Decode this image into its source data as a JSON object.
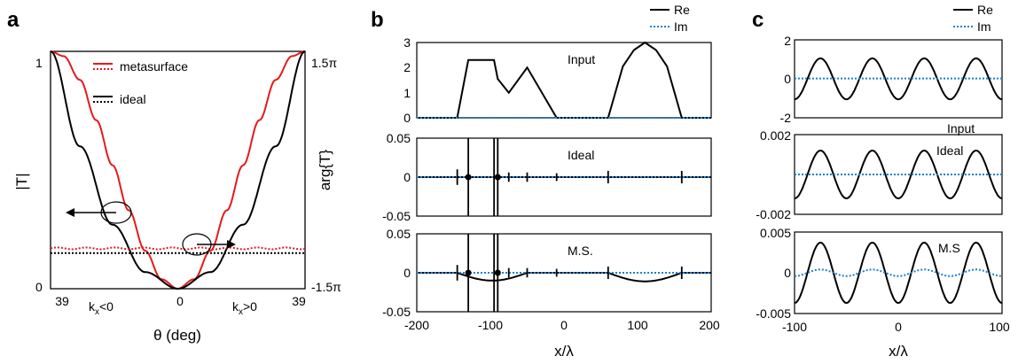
{
  "colors": {
    "re": "#000000",
    "im": "#1e7fd0",
    "meta": "#e31a1c",
    "ideal": "#000000"
  },
  "panels": {
    "a": {
      "letter": "a",
      "legend": [
        "metasurface",
        "ideal"
      ],
      "ylabel_left": "|T|",
      "ylabel_right": "arg{T}",
      "yticks_left": [
        "0",
        "1"
      ],
      "yticks_right": [
        "-1.5π",
        "1.5π"
      ],
      "xticks": [
        "39",
        "0",
        "39"
      ],
      "xnotes": [
        "k",
        "x",
        "<0",
        "k",
        "x",
        ">0"
      ],
      "xlabel": "θ (deg)"
    },
    "b": {
      "letter": "b",
      "legend": [
        "Re",
        "Im"
      ],
      "sub_labels": [
        "Input",
        "Ideal",
        "M.S."
      ],
      "xticks": [
        "-200",
        "-100",
        "0",
        "100",
        "200"
      ],
      "xlabel": "x/λ",
      "yticks_top": [
        "0",
        "1",
        "2",
        "3"
      ],
      "yticks_mid": [
        "-0.05",
        "0",
        "0.05"
      ],
      "yticks_bot": [
        "-0.05",
        "0",
        "0.05"
      ]
    },
    "c": {
      "letter": "c",
      "legend": [
        "Re",
        "Im"
      ],
      "sub_labels": [
        "Input",
        "Ideal",
        "M.S"
      ],
      "xticks": [
        "-100",
        "0",
        "100"
      ],
      "xlabel": "x/λ",
      "yticks_top": [
        "-2",
        "0",
        "2"
      ],
      "yticks_mid": [
        "-0.002",
        "0.002"
      ],
      "yticks_bot": [
        "-0.005",
        "0",
        "0.005"
      ]
    }
  },
  "chart_data": [
    {
      "type": "line",
      "panel": "a",
      "xlabel": "θ (deg)",
      "ylabel": "|T|",
      "ylabel_right": "arg{T}",
      "xlim": [
        -39,
        39
      ],
      "ylim": [
        0,
        1
      ],
      "ylim_right_label": [
        "-1.5π",
        "1.5π"
      ],
      "series": [
        {
          "name": "metasurface",
          "style": "solid",
          "color": "#e31a1c",
          "x": [
            -39,
            -35,
            -30,
            -25,
            -20,
            -15,
            -10,
            -5,
            0,
            5,
            10,
            15,
            20,
            25,
            30,
            35,
            39
          ],
          "y": [
            1.0,
            0.98,
            0.88,
            0.71,
            0.52,
            0.33,
            0.16,
            0.04,
            0.0,
            0.04,
            0.16,
            0.33,
            0.52,
            0.71,
            0.88,
            0.98,
            1.0
          ]
        },
        {
          "name": "ideal",
          "style": "solid",
          "color": "#000000",
          "x": [
            -39,
            -30,
            -20,
            -10,
            0,
            10,
            20,
            30,
            39
          ],
          "y": [
            1.0,
            0.6,
            0.27,
            0.07,
            0.0,
            0.07,
            0.27,
            0.6,
            1.0
          ]
        },
        {
          "name": "metasurface",
          "style": "dotted",
          "color": "#e31a1c",
          "x": [
            -39,
            -20,
            0,
            20,
            39
          ],
          "y": [
            0.17,
            0.17,
            0.17,
            0.17,
            0.17
          ]
        },
        {
          "name": "ideal",
          "style": "dotted",
          "color": "#000000",
          "x": [
            -39,
            0,
            39
          ],
          "y": [
            0.15,
            0.15,
            0.15
          ]
        }
      ]
    },
    {
      "type": "line",
      "panel": "b-input",
      "annotation": "Input",
      "xlim": [
        -200,
        200
      ],
      "ylim": [
        0,
        3
      ],
      "series": [
        {
          "name": "Re",
          "x": [
            -200,
            -145,
            -130,
            -95,
            -90,
            -75,
            -50,
            -10,
            60,
            80,
            95,
            110,
            125,
            140,
            160,
            200
          ],
          "y": [
            0,
            0,
            2.3,
            2.3,
            1.55,
            1.0,
            2.0,
            0,
            0,
            2.05,
            2.7,
            3.0,
            2.7,
            2.05,
            0,
            0
          ]
        },
        {
          "name": "Im",
          "x": [
            -200,
            200
          ],
          "y": [
            0,
            0
          ]
        }
      ]
    },
    {
      "type": "line",
      "panel": "b-ideal",
      "annotation": "Ideal",
      "xlim": [
        -200,
        200
      ],
      "ylim": [
        -0.05,
        0.05
      ],
      "spikes_x": [
        -145,
        -130,
        -95,
        -90,
        -75,
        -50,
        -10,
        60,
        160
      ],
      "spikes_amp": [
        0.01,
        0.05,
        0.05,
        0.05,
        0.006,
        0.006,
        0.005,
        0.008,
        0.008
      ]
    },
    {
      "type": "line",
      "panel": "b-ms",
      "annotation": "M.S.",
      "xlim": [
        -200,
        200
      ],
      "ylim": [
        -0.05,
        0.05
      ],
      "spikes_x": [
        -145,
        -130,
        -95,
        -90,
        -75,
        -50,
        -10,
        60,
        160
      ],
      "spikes_amp": [
        0.01,
        0.05,
        0.05,
        0.05,
        0.006,
        0.006,
        0.005,
        0.008,
        0.008
      ],
      "baseline_dips": [
        {
          "x0": -145,
          "x1": -50,
          "depth": -0.01
        },
        {
          "x0": 60,
          "x1": 160,
          "depth": -0.011
        }
      ]
    },
    {
      "type": "line",
      "panel": "c-input",
      "annotation": "Input",
      "xlim": [
        -100,
        100
      ],
      "ylim": [
        -2,
        2
      ],
      "re": {
        "amplitude": 1.05,
        "period": 50,
        "peak_x": -75
      },
      "im": {
        "value": 0.02
      }
    },
    {
      "type": "line",
      "panel": "c-ideal",
      "annotation": "Ideal",
      "xlim": [
        -100,
        100
      ],
      "ylim": [
        -0.002,
        0.002
      ],
      "re": {
        "amplitude": 0.0012,
        "period": 50,
        "peak_x": -75
      },
      "im": {
        "value": 0.0
      }
    },
    {
      "type": "line",
      "panel": "c-ms",
      "annotation": "M.S",
      "xlim": [
        -100,
        100
      ],
      "ylim": [
        -0.005,
        0.005
      ],
      "re": {
        "amplitude": 0.0037,
        "period": 50,
        "peak_x": -75
      },
      "im": {
        "amplitude": 0.0004,
        "period": 50,
        "value": 0.0
      }
    }
  ]
}
